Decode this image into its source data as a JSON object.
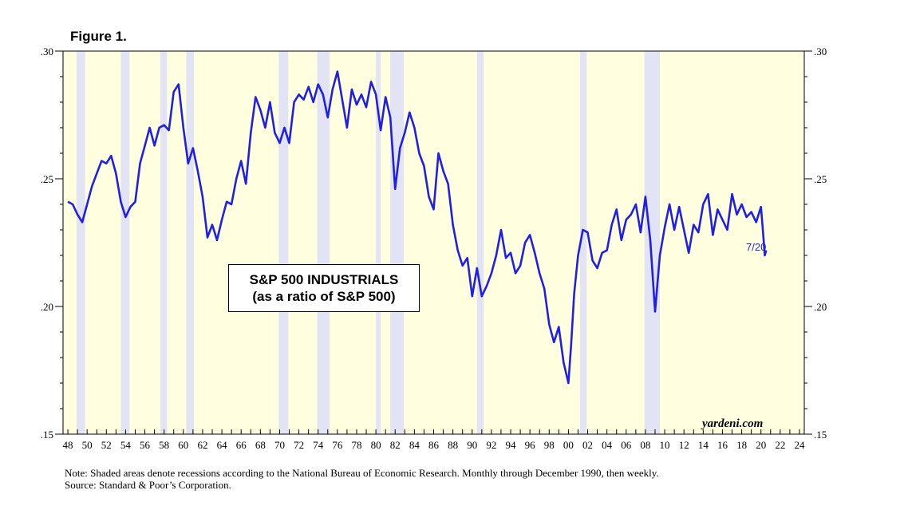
{
  "figure_title": "Figure 1.",
  "annotation": {
    "line1": "S&P 500 INDUSTRIALS",
    "line2": "(as a ratio of S&P 500)"
  },
  "end_label": "7/20",
  "watermark": "yardeni.com",
  "notes": {
    "line1": "Note: Shaded areas denote recessions according to the National Bureau of Economic Research. Monthly through December 1990, then weekly.",
    "line2": "Source: Standard & Poor’s Corporation."
  },
  "colors": {
    "plot_background": "#ffffe0",
    "recession": "#e3e3f6",
    "series": "#1f1fe6",
    "end_label": "#2323dd"
  },
  "chart_data": {
    "type": "line",
    "title": "S&P 500 INDUSTRIALS (as a ratio of S&P 500)",
    "xlabel": "",
    "ylabel": "",
    "xlim": [
      1947.5,
      2024.5
    ],
    "ylim": [
      0.15,
      0.3
    ],
    "y_ticks": [
      ".15",
      ".20",
      ".25",
      ".30"
    ],
    "y_tick_values": [
      0.15,
      0.2,
      0.25,
      0.3
    ],
    "x_tick_labels": [
      "48",
      "50",
      "52",
      "54",
      "56",
      "58",
      "60",
      "62",
      "64",
      "66",
      "68",
      "70",
      "72",
      "74",
      "76",
      "78",
      "80",
      "82",
      "84",
      "86",
      "88",
      "90",
      "92",
      "94",
      "96",
      "98",
      "00",
      "02",
      "04",
      "06",
      "08",
      "10",
      "12",
      "14",
      "16",
      "18",
      "20",
      "22",
      "24"
    ],
    "x_tick_values": [
      1948,
      1950,
      1952,
      1954,
      1956,
      1958,
      1960,
      1962,
      1964,
      1966,
      1968,
      1970,
      1972,
      1974,
      1976,
      1978,
      1980,
      1982,
      1984,
      1986,
      1988,
      1990,
      1992,
      1994,
      1996,
      1998,
      2000,
      2002,
      2004,
      2006,
      2008,
      2010,
      2012,
      2014,
      2016,
      2018,
      2020,
      2022,
      2024
    ],
    "recessions": [
      [
        1948.9,
        1949.8
      ],
      [
        1953.5,
        1954.4
      ],
      [
        1957.6,
        1958.3
      ],
      [
        1960.3,
        1961.1
      ],
      [
        1969.9,
        1970.9
      ],
      [
        1973.9,
        1975.2
      ],
      [
        1980.0,
        1980.5
      ],
      [
        1981.5,
        1982.9
      ],
      [
        1990.5,
        1991.2
      ],
      [
        2001.2,
        2001.9
      ],
      [
        2007.9,
        2009.5
      ]
    ],
    "series": [
      {
        "name": "S&P 500 Industrials / S&P 500",
        "x": [
          1948.0,
          1948.5,
          1949.0,
          1949.5,
          1950.0,
          1950.5,
          1951.0,
          1951.5,
          1952.0,
          1952.5,
          1953.0,
          1953.5,
          1954.0,
          1954.5,
          1955.0,
          1955.5,
          1956.0,
          1956.5,
          1957.0,
          1957.5,
          1958.0,
          1958.5,
          1959.0,
          1959.5,
          1960.0,
          1960.5,
          1961.0,
          1961.5,
          1962.0,
          1962.5,
          1963.0,
          1963.5,
          1964.0,
          1964.5,
          1965.0,
          1965.5,
          1966.0,
          1966.5,
          1967.0,
          1967.5,
          1968.0,
          1968.5,
          1969.0,
          1969.5,
          1970.0,
          1970.5,
          1971.0,
          1971.5,
          1972.0,
          1972.5,
          1973.0,
          1973.5,
          1974.0,
          1974.5,
          1975.0,
          1975.5,
          1976.0,
          1976.5,
          1977.0,
          1977.5,
          1978.0,
          1978.5,
          1979.0,
          1979.5,
          1980.0,
          1980.5,
          1981.0,
          1981.5,
          1982.0,
          1982.5,
          1983.0,
          1983.5,
          1984.0,
          1984.5,
          1985.0,
          1985.5,
          1986.0,
          1986.5,
          1987.0,
          1987.5,
          1988.0,
          1988.5,
          1989.0,
          1989.5,
          1990.0,
          1990.5,
          1991.0,
          1991.5,
          1992.0,
          1992.5,
          1993.0,
          1993.5,
          1994.0,
          1994.5,
          1995.0,
          1995.5,
          1996.0,
          1996.5,
          1997.0,
          1997.5,
          1998.0,
          1998.5,
          1999.0,
          1999.5,
          2000.0,
          2000.3,
          2000.6,
          2001.0,
          2001.5,
          2002.0,
          2002.5,
          2003.0,
          2003.5,
          2004.0,
          2004.5,
          2005.0,
          2005.5,
          2006.0,
          2006.5,
          2007.0,
          2007.5,
          2008.0,
          2008.5,
          2009.0,
          2009.5,
          2010.0,
          2010.5,
          2011.0,
          2011.5,
          2012.0,
          2012.5,
          2013.0,
          2013.5,
          2014.0,
          2014.5,
          2015.0,
          2015.5,
          2016.0,
          2016.5,
          2017.0,
          2017.5,
          2018.0,
          2018.5,
          2019.0,
          2019.5,
          2020.0,
          2020.2,
          2020.4,
          2020.55
        ],
        "y": [
          0.241,
          0.24,
          0.236,
          0.233,
          0.24,
          0.247,
          0.252,
          0.257,
          0.256,
          0.259,
          0.252,
          0.241,
          0.235,
          0.239,
          0.241,
          0.256,
          0.263,
          0.27,
          0.263,
          0.27,
          0.271,
          0.269,
          0.284,
          0.287,
          0.27,
          0.256,
          0.262,
          0.253,
          0.243,
          0.227,
          0.232,
          0.226,
          0.234,
          0.241,
          0.24,
          0.25,
          0.257,
          0.248,
          0.268,
          0.282,
          0.277,
          0.27,
          0.28,
          0.268,
          0.264,
          0.27,
          0.264,
          0.28,
          0.283,
          0.281,
          0.286,
          0.28,
          0.287,
          0.283,
          0.274,
          0.285,
          0.292,
          0.281,
          0.27,
          0.285,
          0.279,
          0.283,
          0.278,
          0.288,
          0.283,
          0.269,
          0.282,
          0.274,
          0.246,
          0.262,
          0.268,
          0.276,
          0.27,
          0.26,
          0.255,
          0.243,
          0.238,
          0.26,
          0.253,
          0.248,
          0.232,
          0.222,
          0.216,
          0.219,
          0.204,
          0.215,
          0.204,
          0.208,
          0.213,
          0.22,
          0.23,
          0.219,
          0.221,
          0.213,
          0.216,
          0.225,
          0.228,
          0.221,
          0.213,
          0.207,
          0.193,
          0.186,
          0.192,
          0.178,
          0.17,
          0.186,
          0.205,
          0.22,
          0.23,
          0.229,
          0.218,
          0.215,
          0.221,
          0.222,
          0.232,
          0.238,
          0.226,
          0.234,
          0.236,
          0.24,
          0.229,
          0.243,
          0.226,
          0.198,
          0.22,
          0.231,
          0.24,
          0.23,
          0.239,
          0.23,
          0.221,
          0.232,
          0.229,
          0.24,
          0.244,
          0.228,
          0.238,
          0.234,
          0.23,
          0.244,
          0.236,
          0.24,
          0.235,
          0.237,
          0.233,
          0.239,
          0.23,
          0.22,
          0.222
        ]
      }
    ]
  }
}
